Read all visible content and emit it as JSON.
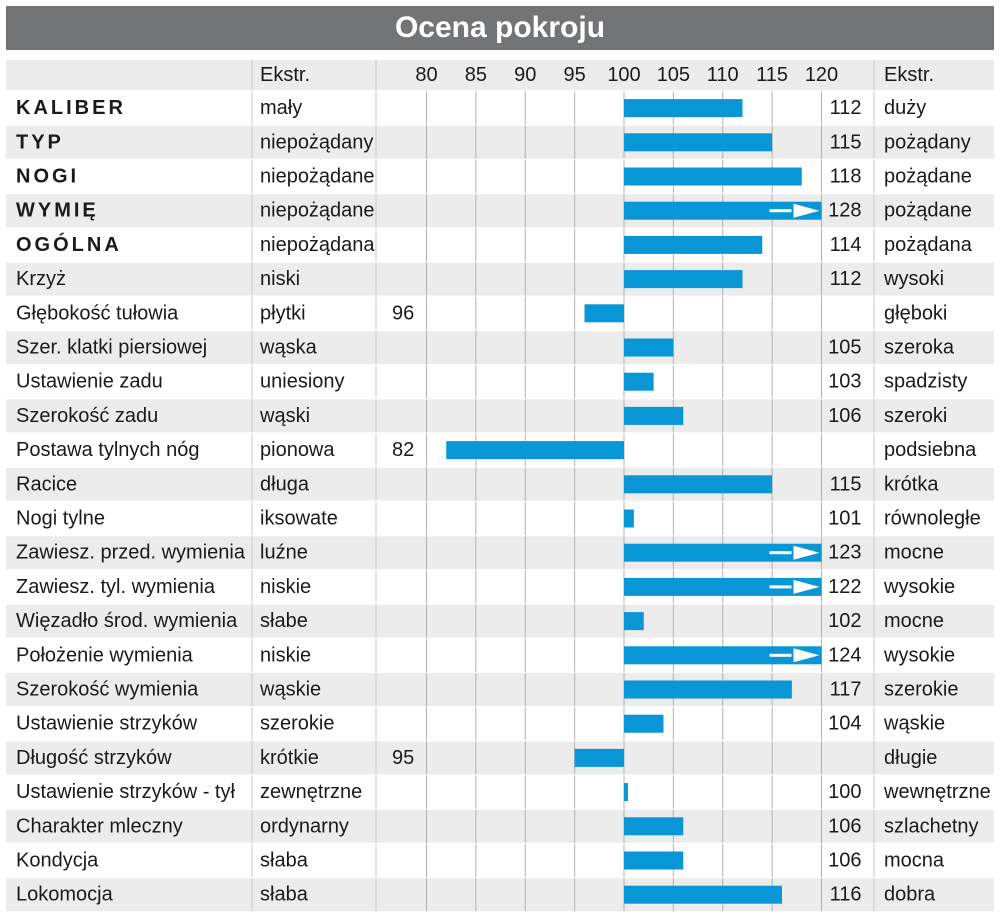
{
  "title": "Ocena pokroju",
  "header": {
    "extr_left": "Ekstr.",
    "extr_right": "Ekstr."
  },
  "colors": {
    "bar": "#0996d6",
    "title_bg": "#737476",
    "row_alt": "#ececec",
    "grid": "#b0b0b0"
  },
  "chart_data": {
    "type": "bar",
    "orientation": "horizontal",
    "title": "Ocena pokroju",
    "xlim": [
      80,
      120
    ],
    "baseline": 100,
    "x_ticks": [
      "80",
      "85",
      "90",
      "95",
      "100",
      "105",
      "110",
      "115",
      "120"
    ],
    "grid": true,
    "overflow_marker": "arrow when value exceeds 120",
    "rows": [
      {
        "trait": "KALIBER",
        "bold": true,
        "low": "mały",
        "high": "duży",
        "value": 112
      },
      {
        "trait": "TYP",
        "bold": true,
        "low": "niepożądany",
        "high": "pożądany",
        "value": 115
      },
      {
        "trait": "NOGI",
        "bold": true,
        "low": "niepożądane",
        "high": "pożądane",
        "value": 118
      },
      {
        "trait": "WYMIĘ",
        "bold": true,
        "low": "niepożądane",
        "high": "pożądane",
        "value": 128
      },
      {
        "trait": "OGÓLNA",
        "bold": true,
        "low": "niepożądana",
        "high": "pożądana",
        "value": 114
      },
      {
        "trait": "Krzyż",
        "bold": false,
        "low": "niski",
        "high": "wysoki",
        "value": 112
      },
      {
        "trait": "Głębokość tułowia",
        "bold": false,
        "low": "płytki",
        "high": "głęboki",
        "value": 96
      },
      {
        "trait": "Szer. klatki piersiowej",
        "bold": false,
        "low": "wąska",
        "high": "szeroka",
        "value": 105
      },
      {
        "trait": "Ustawienie zadu",
        "bold": false,
        "low": "uniesiony",
        "high": "spadzisty",
        "value": 103
      },
      {
        "trait": "Szerokość zadu",
        "bold": false,
        "low": "wąski",
        "high": "szeroki",
        "value": 106
      },
      {
        "trait": "Postawa tylnych nóg",
        "bold": false,
        "low": "pionowa",
        "high": "podsiebna",
        "value": 82
      },
      {
        "trait": "Racice",
        "bold": false,
        "low": "długa",
        "high": "krótka",
        "value": 115
      },
      {
        "trait": "Nogi tylne",
        "bold": false,
        "low": "iksowate",
        "high": "równoległe",
        "value": 101
      },
      {
        "trait": "Zawiesz. przed. wymienia",
        "bold": false,
        "low": "luźne",
        "high": "mocne",
        "value": 123
      },
      {
        "trait": "Zawiesz. tyl. wymienia",
        "bold": false,
        "low": "niskie",
        "high": "wysokie",
        "value": 122
      },
      {
        "trait": "Więzadło środ. wymienia",
        "bold": false,
        "low": "słabe",
        "high": "mocne",
        "value": 102
      },
      {
        "trait": "Położenie wymienia",
        "bold": false,
        "low": "niskie",
        "high": "wysokie",
        "value": 124
      },
      {
        "trait": "Szerokość wymienia",
        "bold": false,
        "low": "wąskie",
        "high": "szerokie",
        "value": 117
      },
      {
        "trait": "Ustawienie strzyków",
        "bold": false,
        "low": "szerokie",
        "high": "wąskie",
        "value": 104
      },
      {
        "trait": "Długość strzyków",
        "bold": false,
        "low": "krótkie",
        "high": "długie",
        "value": 95
      },
      {
        "trait": "Ustawienie strzyków - tył",
        "bold": false,
        "low": "zewnętrzne",
        "high": "wewnętrzne",
        "value": 100
      },
      {
        "trait": "Charakter mleczny",
        "bold": false,
        "low": "ordynarny",
        "high": "szlachetny",
        "value": 106
      },
      {
        "trait": "Kondycja",
        "bold": false,
        "low": "słaba",
        "high": "mocna",
        "value": 106
      },
      {
        "trait": "Lokomocja",
        "bold": false,
        "low": "słaba",
        "high": "dobra",
        "value": 116
      }
    ]
  }
}
